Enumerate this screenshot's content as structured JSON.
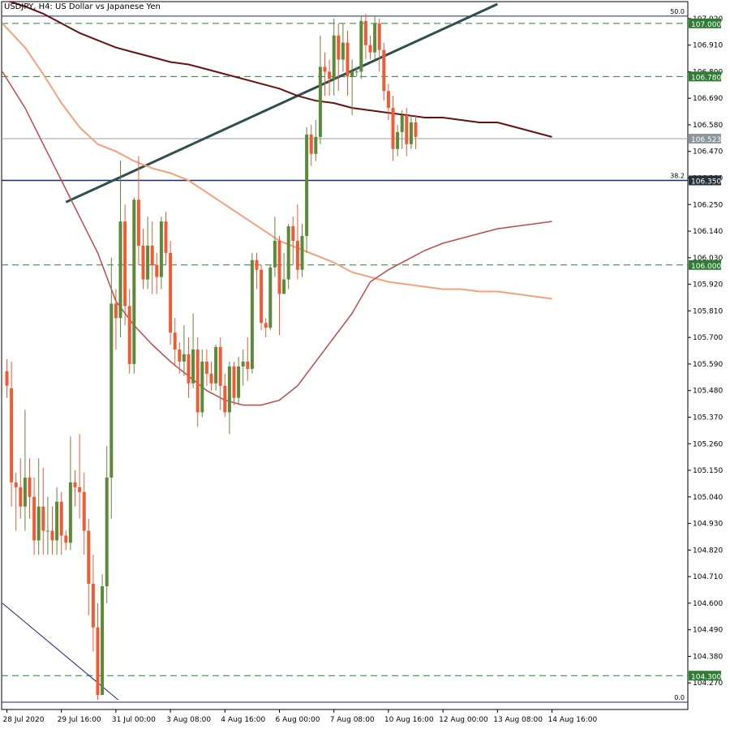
{
  "chart_data": {
    "type": "candlestick",
    "title": "USDJPY, H4:  US Dollar vs Japanese Yen",
    "ylim": [
      104.16,
      107.09
    ],
    "y_ticks": [
      107.02,
      106.91,
      106.8,
      106.69,
      106.58,
      106.47,
      106.36,
      106.25,
      106.14,
      106.03,
      105.92,
      105.81,
      105.7,
      105.59,
      105.48,
      105.37,
      105.26,
      105.15,
      105.04,
      104.93,
      104.82,
      104.71,
      104.6,
      104.49,
      104.38,
      104.27
    ],
    "y_tick_labels": [
      "107.020",
      "106.910",
      "106.800",
      "106.690",
      "106.580",
      "106.470",
      "106.360",
      "106.250",
      "106.140",
      "106.030",
      "105.920",
      "105.810",
      "105.700",
      "105.590",
      "105.480",
      "105.370",
      "105.260",
      "105.150",
      "105.040",
      "104.930",
      "104.820",
      "104.710",
      "104.600",
      "104.490",
      "104.380",
      "104.270"
    ],
    "x_ticks": [
      0,
      12,
      24,
      36,
      48,
      60,
      72,
      84,
      96,
      108,
      120
    ],
    "x_tick_labels": [
      "28 Jul 2020",
      "29 Jul 16:00",
      "31 Jul 00:00",
      "3 Aug 08:00",
      "4 Aug 16:00",
      "6 Aug 00:00",
      "7 Aug 08:00",
      "10 Aug 16:00",
      "12 Aug 00:00",
      "13 Aug 08:00",
      "14 Aug 16:00"
    ],
    "current_price": 106.523,
    "current_price_label": "106.523",
    "levels": [
      {
        "value": 107.0,
        "label": "107.000"
      },
      {
        "value": 106.78,
        "label": "106.780"
      },
      {
        "value": 106.35,
        "label": "106.350"
      },
      {
        "value": 106.0,
        "label": "106.000"
      },
      {
        "value": 104.3,
        "label": "104.300"
      }
    ],
    "fibonacci": [
      {
        "label": "50.0",
        "value": 107.03
      },
      {
        "label": "38.2",
        "value": 106.35
      },
      {
        "label": "0.0",
        "value": 104.19
      }
    ],
    "trendlines": [
      {
        "x1": 13,
        "y1": 106.26,
        "x2": 108,
        "y2": 107.08
      },
      {
        "x1": -1,
        "y1": 104.6,
        "x2": 24.5,
        "y2": 104.2
      }
    ],
    "candles": [
      [
        105.56,
        105.5,
        105.61,
        105.45
      ],
      [
        105.49,
        105.1,
        105.6,
        105.0
      ],
      [
        105.1,
        105.08,
        105.14,
        104.9
      ],
      [
        105.08,
        105.0,
        105.2,
        104.95
      ],
      [
        105.0,
        105.12,
        105.4,
        104.9
      ],
      [
        105.12,
        105.04,
        105.2,
        104.95
      ],
      [
        105.04,
        104.86,
        105.12,
        104.8
      ],
      [
        104.86,
        105.0,
        105.2,
        104.8
      ],
      [
        105.0,
        104.9,
        105.16,
        104.8
      ],
      [
        104.9,
        104.9,
        105.04,
        104.8
      ],
      [
        104.9,
        104.86,
        105.0,
        104.8
      ],
      [
        104.86,
        105.02,
        105.08,
        104.8
      ],
      [
        105.02,
        104.88,
        105.06,
        104.8
      ],
      [
        104.88,
        104.85,
        104.9,
        104.82
      ],
      [
        104.85,
        105.1,
        105.29,
        104.82
      ],
      [
        105.1,
        105.08,
        105.15,
        105.0
      ],
      [
        105.08,
        105.06,
        105.3,
        104.95
      ],
      [
        105.06,
        104.9,
        105.14,
        104.8
      ],
      [
        104.9,
        104.68,
        104.95,
        104.55
      ],
      [
        104.68,
        104.5,
        104.8,
        104.4
      ],
      [
        104.5,
        104.22,
        104.6,
        104.2
      ],
      [
        104.22,
        104.67,
        104.72,
        104.22
      ],
      [
        104.67,
        105.12,
        105.25,
        104.6
      ],
      [
        105.12,
        105.84,
        106.03,
        104.95
      ],
      [
        105.84,
        105.78,
        105.9,
        105.65
      ],
      [
        105.78,
        106.18,
        106.43,
        105.7
      ],
      [
        106.18,
        105.83,
        106.25,
        105.75
      ],
      [
        105.83,
        105.59,
        105.9,
        105.55
      ],
      [
        105.59,
        106.27,
        106.28,
        105.55
      ],
      [
        106.27,
        106.08,
        106.45,
        106.0
      ],
      [
        106.08,
        105.94,
        106.15,
        105.9
      ],
      [
        105.94,
        106.08,
        106.2,
        105.9
      ],
      [
        106.08,
        106.0,
        106.18,
        105.88
      ],
      [
        106.0,
        105.95,
        106.05,
        105.88
      ],
      [
        105.95,
        106.18,
        106.2,
        105.9
      ],
      [
        106.18,
        106.05,
        106.22,
        106.0
      ],
      [
        106.05,
        105.72,
        106.1,
        105.67
      ],
      [
        105.72,
        105.65,
        105.78,
        105.58
      ],
      [
        105.65,
        105.6,
        105.68,
        105.55
      ],
      [
        105.6,
        105.63,
        105.75,
        105.54
      ],
      [
        105.63,
        105.51,
        105.7,
        105.45
      ],
      [
        105.51,
        105.65,
        105.8,
        105.49
      ],
      [
        105.65,
        105.39,
        105.7,
        105.33
      ],
      [
        105.39,
        105.6,
        105.65,
        105.37
      ],
      [
        105.6,
        105.55,
        105.65,
        105.5
      ],
      [
        105.55,
        105.51,
        105.6,
        105.48
      ],
      [
        105.51,
        105.66,
        105.67,
        105.48
      ],
      [
        105.66,
        105.5,
        105.7,
        105.4
      ],
      [
        105.5,
        105.39,
        105.55,
        105.37
      ],
      [
        105.39,
        105.58,
        105.6,
        105.3
      ],
      [
        105.58,
        105.45,
        105.6,
        105.42
      ],
      [
        105.45,
        105.58,
        105.62,
        105.42
      ],
      [
        105.58,
        105.6,
        105.65,
        105.5
      ],
      [
        105.6,
        105.57,
        105.7,
        105.52
      ],
      [
        105.57,
        106.02,
        106.05,
        105.55
      ],
      [
        106.02,
        105.98,
        106.05,
        105.9
      ],
      [
        105.98,
        105.76,
        106.0,
        105.73
      ],
      [
        105.76,
        105.74,
        105.78,
        105.7
      ],
      [
        105.74,
        105.99,
        106.0,
        105.73
      ],
      [
        105.99,
        106.1,
        106.2,
        105.95
      ],
      [
        106.1,
        105.88,
        106.12,
        105.71
      ],
      [
        105.88,
        105.94,
        106.05,
        105.88
      ],
      [
        105.94,
        106.16,
        106.17,
        105.9
      ],
      [
        106.16,
        106.1,
        106.2,
        106.0
      ],
      [
        106.1,
        105.98,
        106.25,
        105.94
      ],
      [
        105.98,
        106.12,
        106.17,
        105.95
      ],
      [
        106.12,
        106.54,
        106.57,
        106.05
      ],
      [
        106.54,
        106.46,
        106.58,
        106.41
      ],
      [
        106.46,
        106.53,
        106.6,
        106.43
      ],
      [
        106.53,
        106.82,
        106.95,
        106.5
      ],
      [
        106.82,
        106.8,
        106.88,
        106.7
      ],
      [
        106.8,
        106.77,
        106.85,
        106.7
      ],
      [
        106.77,
        106.95,
        107.02,
        106.7
      ],
      [
        106.95,
        106.85,
        107.0,
        106.72
      ],
      [
        106.85,
        106.92,
        107.0,
        106.8
      ],
      [
        106.92,
        106.78,
        106.97,
        106.7
      ],
      [
        106.78,
        106.8,
        106.85,
        106.62
      ],
      [
        106.8,
        106.8,
        106.82,
        106.78
      ],
      [
        106.8,
        107.01,
        107.03,
        106.77
      ],
      [
        107.01,
        106.91,
        107.04,
        106.85
      ],
      [
        106.91,
        106.88,
        106.95,
        106.85
      ],
      [
        106.88,
        107.0,
        107.03,
        106.85
      ],
      [
        107.0,
        106.89,
        107.02,
        106.8
      ],
      [
        106.89,
        106.72,
        106.92,
        106.68
      ],
      [
        106.72,
        106.65,
        106.75,
        106.6
      ],
      [
        106.65,
        106.48,
        106.7,
        106.43
      ],
      [
        106.48,
        106.55,
        106.58,
        106.45
      ],
      [
        106.55,
        106.62,
        106.64,
        106.48
      ],
      [
        106.62,
        106.5,
        106.65,
        106.45
      ],
      [
        106.5,
        106.59,
        106.62,
        106.48
      ],
      [
        106.59,
        106.53,
        106.62,
        106.48
      ]
    ],
    "moving_averages": [
      {
        "color": "#6b0f0f",
        "width": 2,
        "points": [
          [
            -1,
            107.1
          ],
          [
            4,
            107.07
          ],
          [
            8,
            107.04
          ],
          [
            12,
            107.0
          ],
          [
            16,
            106.96
          ],
          [
            20,
            106.93
          ],
          [
            24,
            106.9
          ],
          [
            28,
            106.88
          ],
          [
            32,
            106.86
          ],
          [
            36,
            106.84
          ],
          [
            40,
            106.83
          ],
          [
            44,
            106.81
          ],
          [
            48,
            106.79
          ],
          [
            52,
            106.77
          ],
          [
            56,
            106.75
          ],
          [
            60,
            106.73
          ],
          [
            64,
            106.7
          ],
          [
            68,
            106.68
          ],
          [
            72,
            106.67
          ],
          [
            76,
            106.65
          ],
          [
            80,
            106.64
          ],
          [
            84,
            106.63
          ],
          [
            88,
            106.62
          ],
          [
            92,
            106.61
          ],
          [
            96,
            106.61
          ],
          [
            100,
            106.6
          ],
          [
            104,
            106.59
          ],
          [
            108,
            106.59
          ],
          [
            112,
            106.57
          ],
          [
            116,
            106.55
          ],
          [
            120,
            106.53
          ]
        ]
      },
      {
        "color": "#f7a07a",
        "width": 2,
        "points": [
          [
            -1,
            107.0
          ],
          [
            4,
            106.9
          ],
          [
            8,
            106.79
          ],
          [
            12,
            106.67
          ],
          [
            16,
            106.57
          ],
          [
            20,
            106.5
          ],
          [
            24,
            106.47
          ],
          [
            28,
            106.43
          ],
          [
            32,
            106.4
          ],
          [
            36,
            106.38
          ],
          [
            40,
            106.35
          ],
          [
            44,
            106.3
          ],
          [
            48,
            106.25
          ],
          [
            52,
            106.2
          ],
          [
            56,
            106.15
          ],
          [
            60,
            106.1
          ],
          [
            64,
            106.07
          ],
          [
            68,
            106.04
          ],
          [
            72,
            106.01
          ],
          [
            76,
            105.97
          ],
          [
            80,
            105.95
          ],
          [
            84,
            105.93
          ],
          [
            88,
            105.92
          ],
          [
            92,
            105.91
          ],
          [
            96,
            105.9
          ],
          [
            100,
            105.9
          ],
          [
            104,
            105.89
          ],
          [
            108,
            105.89
          ],
          [
            112,
            105.88
          ],
          [
            116,
            105.87
          ],
          [
            120,
            105.86
          ]
        ]
      },
      {
        "color": "#c04a4a",
        "width": 1.5,
        "points": [
          [
            -1,
            106.8
          ],
          [
            4,
            106.65
          ],
          [
            8,
            106.5
          ],
          [
            12,
            106.35
          ],
          [
            16,
            106.2
          ],
          [
            20,
            106.05
          ],
          [
            24,
            105.85
          ],
          [
            28,
            105.75
          ],
          [
            32,
            105.67
          ],
          [
            36,
            105.6
          ],
          [
            40,
            105.54
          ],
          [
            44,
            105.48
          ],
          [
            48,
            105.44
          ],
          [
            52,
            105.42
          ],
          [
            56,
            105.42
          ],
          [
            60,
            105.44
          ],
          [
            64,
            105.5
          ],
          [
            68,
            105.6
          ],
          [
            72,
            105.7
          ],
          [
            76,
            105.8
          ],
          [
            80,
            105.93
          ],
          [
            84,
            105.98
          ],
          [
            88,
            106.02
          ],
          [
            92,
            106.06
          ],
          [
            96,
            106.09
          ],
          [
            100,
            106.11
          ],
          [
            104,
            106.13
          ],
          [
            108,
            106.15
          ],
          [
            112,
            106.16
          ],
          [
            116,
            106.17
          ],
          [
            120,
            106.18
          ]
        ]
      }
    ],
    "bull_color": "#5d8a3a",
    "bear_color": "#ef5b34",
    "grid": false,
    "legend": "none"
  }
}
